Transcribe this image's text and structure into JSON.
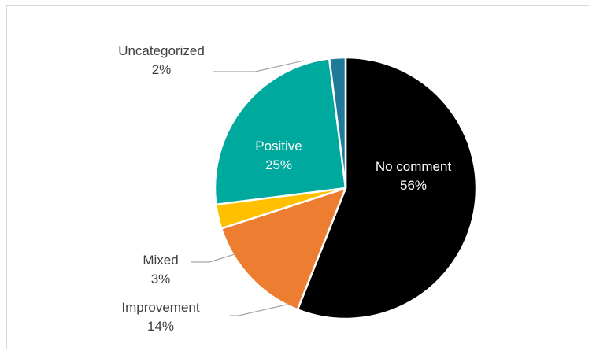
{
  "chart_data": {
    "type": "pie",
    "title": "",
    "slices": [
      {
        "label": "No comment",
        "value": 56,
        "percent_label": "56%",
        "color": "#000000",
        "text_color": "#ffffff"
      },
      {
        "label": "Improvement",
        "value": 14,
        "percent_label": "14%",
        "color": "#ED7D31",
        "text_color": "#404040"
      },
      {
        "label": "Mixed",
        "value": 3,
        "percent_label": "3%",
        "color": "#FFC000",
        "text_color": "#404040"
      },
      {
        "label": "Positive",
        "value": 25,
        "percent_label": "25%",
        "color": "#00A99D",
        "text_color": "#ffffff"
      },
      {
        "label": "Uncategorized",
        "value": 2,
        "percent_label": "2%",
        "color": "#1F7A99",
        "text_color": "#404040"
      }
    ],
    "start_angle": "top, clockwise",
    "legend": "none",
    "label_placement": "inside for large slices, outside with leader lines for small slices"
  }
}
